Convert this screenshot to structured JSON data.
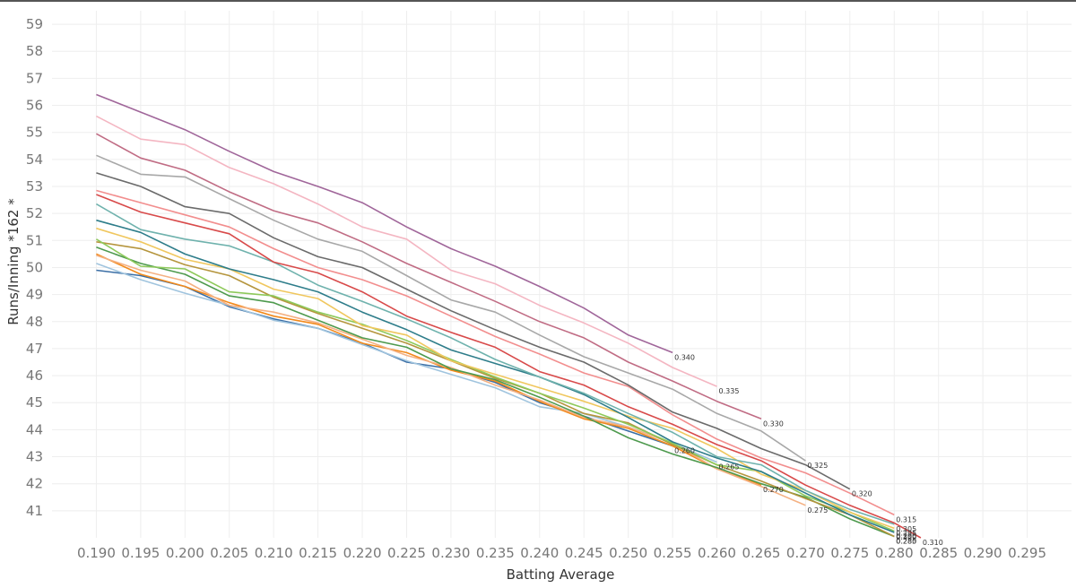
{
  "chart_data": {
    "type": "line",
    "title": "",
    "xlabel": "Batting Average",
    "ylabel": "Runs/Inning *162 *",
    "xlim": [
      0.185,
      0.3
    ],
    "ylim": [
      40,
      59.5
    ],
    "x_ticks": [
      "0.190",
      "0.195",
      "0.200",
      "0.205",
      "0.210",
      "0.215",
      "0.220",
      "0.225",
      "0.230",
      "0.235",
      "0.240",
      "0.245",
      "0.250",
      "0.255",
      "0.260",
      "0.265",
      "0.270",
      "0.275",
      "0.280",
      "0.285",
      "0.290",
      "0.295"
    ],
    "y_ticks": [
      "41",
      "42",
      "43",
      "44",
      "45",
      "46",
      "47",
      "48",
      "49",
      "50",
      "51",
      "52",
      "53",
      "54",
      "55",
      "56",
      "57",
      "58",
      "59"
    ],
    "grid": true,
    "legend": "none",
    "series": [
      {
        "name": "0.340",
        "color": "#a0669a",
        "x": [
          0.19,
          0.195,
          0.2,
          0.205,
          0.21,
          0.215,
          0.22,
          0.225,
          0.23,
          0.235,
          0.24,
          0.245,
          0.25,
          0.255
        ],
        "y": [
          56.4,
          55.75,
          55.1,
          54.3,
          53.55,
          53.0,
          52.4,
          51.5,
          50.7,
          50.05,
          49.3,
          48.5,
          47.5,
          46.85
        ]
      },
      {
        "name": "0.335",
        "color": "#f4b6c2",
        "x": [
          0.19,
          0.195,
          0.2,
          0.205,
          0.21,
          0.215,
          0.22,
          0.225,
          0.23,
          0.235,
          0.24,
          0.245,
          0.25,
          0.255,
          0.26
        ],
        "y": [
          55.6,
          54.75,
          54.55,
          53.7,
          53.1,
          52.35,
          51.5,
          51.05,
          49.9,
          49.4,
          48.6,
          47.95,
          47.2,
          46.3,
          45.6
        ]
      },
      {
        "name": "0.330",
        "color": "#c06c84",
        "x": [
          0.19,
          0.195,
          0.2,
          0.205,
          0.21,
          0.215,
          0.22,
          0.225,
          0.23,
          0.235,
          0.24,
          0.245,
          0.25,
          0.255,
          0.26,
          0.265
        ],
        "y": [
          54.95,
          54.05,
          53.6,
          52.8,
          52.1,
          51.65,
          50.95,
          50.15,
          49.45,
          48.75,
          48.0,
          47.4,
          46.5,
          45.8,
          45.05,
          44.4
        ]
      },
      {
        "name": "0.325",
        "color": "#a8a8a8",
        "x": [
          0.19,
          0.195,
          0.2,
          0.205,
          0.21,
          0.215,
          0.22,
          0.225,
          0.23,
          0.235,
          0.24,
          0.245,
          0.25,
          0.255,
          0.26,
          0.265,
          0.27
        ],
        "y": [
          54.15,
          53.45,
          53.35,
          52.55,
          51.75,
          51.05,
          50.6,
          49.7,
          48.8,
          48.35,
          47.5,
          46.7,
          46.1,
          45.5,
          44.6,
          43.95,
          42.85
        ]
      },
      {
        "name": "0.320",
        "color": "#6b6b6b",
        "x": [
          0.19,
          0.195,
          0.2,
          0.205,
          0.21,
          0.215,
          0.22,
          0.225,
          0.23,
          0.235,
          0.24,
          0.245,
          0.25,
          0.255,
          0.26,
          0.265,
          0.27,
          0.275
        ],
        "y": [
          53.5,
          53.0,
          52.25,
          52.0,
          51.1,
          50.4,
          50.0,
          49.2,
          48.4,
          47.7,
          47.05,
          46.5,
          45.65,
          44.65,
          44.05,
          43.3,
          42.7,
          41.8
        ]
      },
      {
        "name": "0.315",
        "color": "#f28e8e",
        "x": [
          0.19,
          0.195,
          0.2,
          0.205,
          0.21,
          0.215,
          0.22,
          0.225,
          0.23,
          0.235,
          0.24,
          0.245,
          0.25,
          0.255,
          0.26,
          0.265,
          0.27,
          0.275,
          0.28
        ],
        "y": [
          52.85,
          52.4,
          51.95,
          51.5,
          50.7,
          50.0,
          49.55,
          48.95,
          48.2,
          47.45,
          46.8,
          46.1,
          45.6,
          44.55,
          43.65,
          42.95,
          42.4,
          41.65,
          40.85
        ]
      },
      {
        "name": "0.310",
        "color": "#d84a4a",
        "x": [
          0.19,
          0.195,
          0.2,
          0.205,
          0.21,
          0.215,
          0.22,
          0.225,
          0.23,
          0.235,
          0.24,
          0.245,
          0.25,
          0.255,
          0.26,
          0.265,
          0.27,
          0.275,
          0.28,
          0.283
        ],
        "y": [
          52.7,
          52.05,
          51.65,
          51.25,
          50.2,
          49.8,
          49.1,
          48.2,
          47.6,
          47.05,
          46.15,
          45.65,
          44.85,
          44.2,
          43.45,
          42.85,
          41.95,
          41.2,
          40.55,
          40.0
        ]
      },
      {
        "name": "0.305",
        "color": "#6fb2ad",
        "x": [
          0.19,
          0.195,
          0.2,
          0.205,
          0.21,
          0.215,
          0.22,
          0.225,
          0.23,
          0.235,
          0.24,
          0.245,
          0.25,
          0.255,
          0.26,
          0.265,
          0.27,
          0.275,
          0.28
        ],
        "y": [
          52.35,
          51.4,
          51.05,
          50.8,
          50.2,
          49.35,
          48.75,
          48.1,
          47.4,
          46.6,
          45.95,
          45.35,
          44.6,
          43.9,
          43.0,
          42.7,
          41.75,
          41.05,
          40.5
        ]
      },
      {
        "name": "0.300",
        "color": "#2e7d8a",
        "x": [
          0.19,
          0.195,
          0.2,
          0.205,
          0.21,
          0.215,
          0.22,
          0.225,
          0.23,
          0.235,
          0.24,
          0.245,
          0.25,
          0.255,
          0.26,
          0.265,
          0.27,
          0.275,
          0.28
        ],
        "y": [
          51.75,
          51.3,
          50.5,
          49.95,
          49.55,
          49.1,
          48.35,
          47.7,
          46.95,
          46.45,
          45.95,
          45.3,
          44.45,
          43.55,
          42.95,
          42.45,
          41.65,
          40.85,
          40.2
        ]
      },
      {
        "name": "0.295",
        "color": "#f0c75e",
        "x": [
          0.19,
          0.195,
          0.2,
          0.205,
          0.21,
          0.215,
          0.22,
          0.225,
          0.23,
          0.235,
          0.24,
          0.245,
          0.25,
          0.255,
          0.26,
          0.265,
          0.27,
          0.275,
          0.28
        ],
        "y": [
          51.45,
          50.95,
          50.3,
          49.95,
          49.2,
          48.85,
          47.85,
          47.5,
          46.55,
          46.05,
          45.55,
          45.05,
          44.5,
          44.05,
          43.3,
          42.35,
          41.75,
          40.95,
          40.35
        ]
      },
      {
        "name": "0.290",
        "color": "#8ec95b",
        "x": [
          0.19,
          0.195,
          0.2,
          0.205,
          0.21,
          0.215,
          0.22,
          0.225,
          0.23,
          0.235,
          0.24,
          0.245,
          0.25,
          0.255,
          0.26,
          0.265,
          0.27,
          0.275,
          0.28
        ],
        "y": [
          51.05,
          50.05,
          49.95,
          49.1,
          48.95,
          48.35,
          47.9,
          47.3,
          46.6,
          45.95,
          45.35,
          44.8,
          44.2,
          43.5,
          42.7,
          42.45,
          41.55,
          40.95,
          40.25
        ]
      },
      {
        "name": "0.285",
        "color": "#b5953d",
        "x": [
          0.19,
          0.195,
          0.2,
          0.205,
          0.21,
          0.215,
          0.22,
          0.225,
          0.23,
          0.235,
          0.24,
          0.245,
          0.25,
          0.255,
          0.26,
          0.265,
          0.27,
          0.275,
          0.28
        ],
        "y": [
          50.95,
          50.7,
          50.1,
          49.7,
          48.9,
          48.3,
          47.75,
          47.2,
          46.55,
          45.9,
          45.35,
          44.6,
          44.25,
          43.45,
          42.7,
          42.1,
          41.45,
          40.85,
          40.05
        ]
      },
      {
        "name": "0.280",
        "color": "#4e9a4e",
        "x": [
          0.19,
          0.195,
          0.2,
          0.205,
          0.21,
          0.215,
          0.22,
          0.225,
          0.23,
          0.235,
          0.24,
          0.245,
          0.25,
          0.255,
          0.26,
          0.265,
          0.27,
          0.275,
          0.28
        ],
        "y": [
          50.75,
          50.15,
          49.75,
          48.95,
          48.7,
          48.05,
          47.4,
          47.05,
          46.25,
          45.85,
          45.2,
          44.5,
          43.7,
          43.1,
          42.6,
          42.0,
          41.5,
          40.7,
          40.05
        ]
      },
      {
        "name": "0.275",
        "color": "#f4b183",
        "x": [
          0.19,
          0.195,
          0.2,
          0.205,
          0.21,
          0.215,
          0.22,
          0.225,
          0.23,
          0.235,
          0.24,
          0.245,
          0.25,
          0.255,
          0.26,
          0.265,
          0.27
        ],
        "y": [
          50.45,
          49.9,
          49.5,
          48.6,
          48.35,
          47.95,
          47.35,
          46.75,
          46.3,
          45.65,
          45.1,
          44.45,
          44.1,
          43.5,
          42.55,
          41.9,
          41.2
        ]
      },
      {
        "name": "0.270",
        "color": "#f28a1c",
        "x": [
          0.19,
          0.195,
          0.2,
          0.205,
          0.21,
          0.215,
          0.22,
          0.225,
          0.23,
          0.235,
          0.24,
          0.245,
          0.25,
          0.255,
          0.26,
          0.265
        ],
        "y": [
          50.5,
          49.75,
          49.3,
          48.7,
          48.2,
          47.9,
          47.2,
          46.85,
          46.2,
          45.8,
          45.05,
          44.4,
          44.05,
          43.4,
          42.55,
          41.95
        ]
      },
      {
        "name": "0.265",
        "color": "#a0c4de",
        "x": [
          0.19,
          0.195,
          0.2,
          0.205,
          0.21,
          0.215,
          0.22,
          0.225,
          0.23,
          0.235,
          0.24,
          0.245,
          0.25,
          0.255,
          0.26
        ],
        "y": [
          50.15,
          49.55,
          49.05,
          48.6,
          48.05,
          47.75,
          47.15,
          46.55,
          46.05,
          45.55,
          44.85,
          44.6,
          44.1,
          43.5,
          42.8
        ]
      },
      {
        "name": "0.260",
        "color": "#3a6ea5",
        "x": [
          0.19,
          0.195,
          0.2,
          0.205,
          0.21,
          0.215,
          0.22,
          0.225,
          0.23,
          0.235,
          0.24,
          0.245,
          0.25,
          0.255
        ],
        "y": [
          49.9,
          49.7,
          49.3,
          48.55,
          48.1,
          47.75,
          47.2,
          46.5,
          46.25,
          45.75,
          45.0,
          44.5,
          43.95,
          43.4
        ]
      }
    ]
  }
}
